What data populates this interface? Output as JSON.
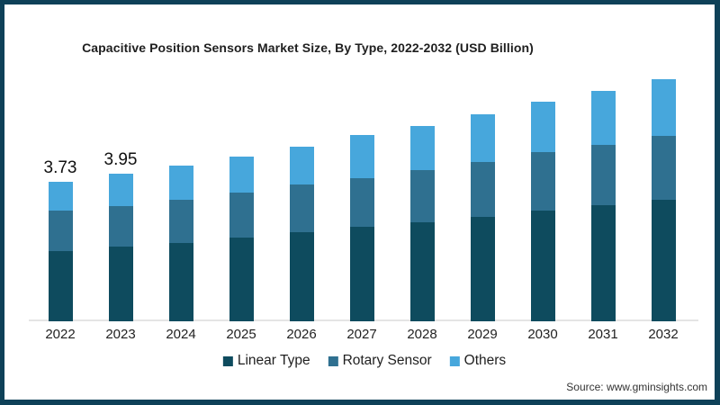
{
  "title": "Capacitive Position Sensors Market Size, By Type, 2022-2032 (USD Billion)",
  "source_caption": "Source: www.gminsights.com",
  "colors": {
    "linear_type": "#0e4b5e",
    "rotary_sensor": "#2f7090",
    "others": "#47a7dc",
    "frame": "#0e4158",
    "axis_line": "#e4e4e4"
  },
  "legend": {
    "items": [
      {
        "label": "Linear Type",
        "color_key": "linear_type"
      },
      {
        "label": "Rotary Sensor",
        "color_key": "rotary_sensor"
      },
      {
        "label": "Others",
        "color_key": "others"
      }
    ]
  },
  "chart_data": {
    "type": "bar",
    "stacked": true,
    "title": "Capacitive Position Sensors Market Size, By Type, 2022-2032 (USD Billion)",
    "xlabel": "",
    "ylabel": "USD Billion",
    "ylim": [
      0,
      7
    ],
    "grid": false,
    "legend_position": "bottom",
    "categories": [
      "2022",
      "2023",
      "2024",
      "2025",
      "2026",
      "2027",
      "2028",
      "2029",
      "2030",
      "2031",
      "2032"
    ],
    "series": [
      {
        "name": "Linear Type",
        "color_key": "linear_type",
        "values": [
          1.88,
          2.0,
          2.1,
          2.24,
          2.38,
          2.53,
          2.65,
          2.79,
          2.96,
          3.11,
          3.25
        ]
      },
      {
        "name": "Rotary Sensor",
        "color_key": "rotary_sensor",
        "values": [
          1.08,
          1.09,
          1.16,
          1.2,
          1.28,
          1.3,
          1.4,
          1.47,
          1.57,
          1.61,
          1.71
        ]
      },
      {
        "name": "Others",
        "color_key": "others",
        "values": [
          0.77,
          0.86,
          0.91,
          0.96,
          1.01,
          1.15,
          1.18,
          1.28,
          1.35,
          1.45,
          1.52
        ]
      }
    ],
    "totals": [
      3.73,
      3.95,
      4.17,
      4.4,
      4.67,
      4.98,
      5.23,
      5.54,
      5.88,
      6.17,
      6.48
    ],
    "data_labels": {
      "2022": "3.73",
      "2023": "3.95"
    }
  }
}
